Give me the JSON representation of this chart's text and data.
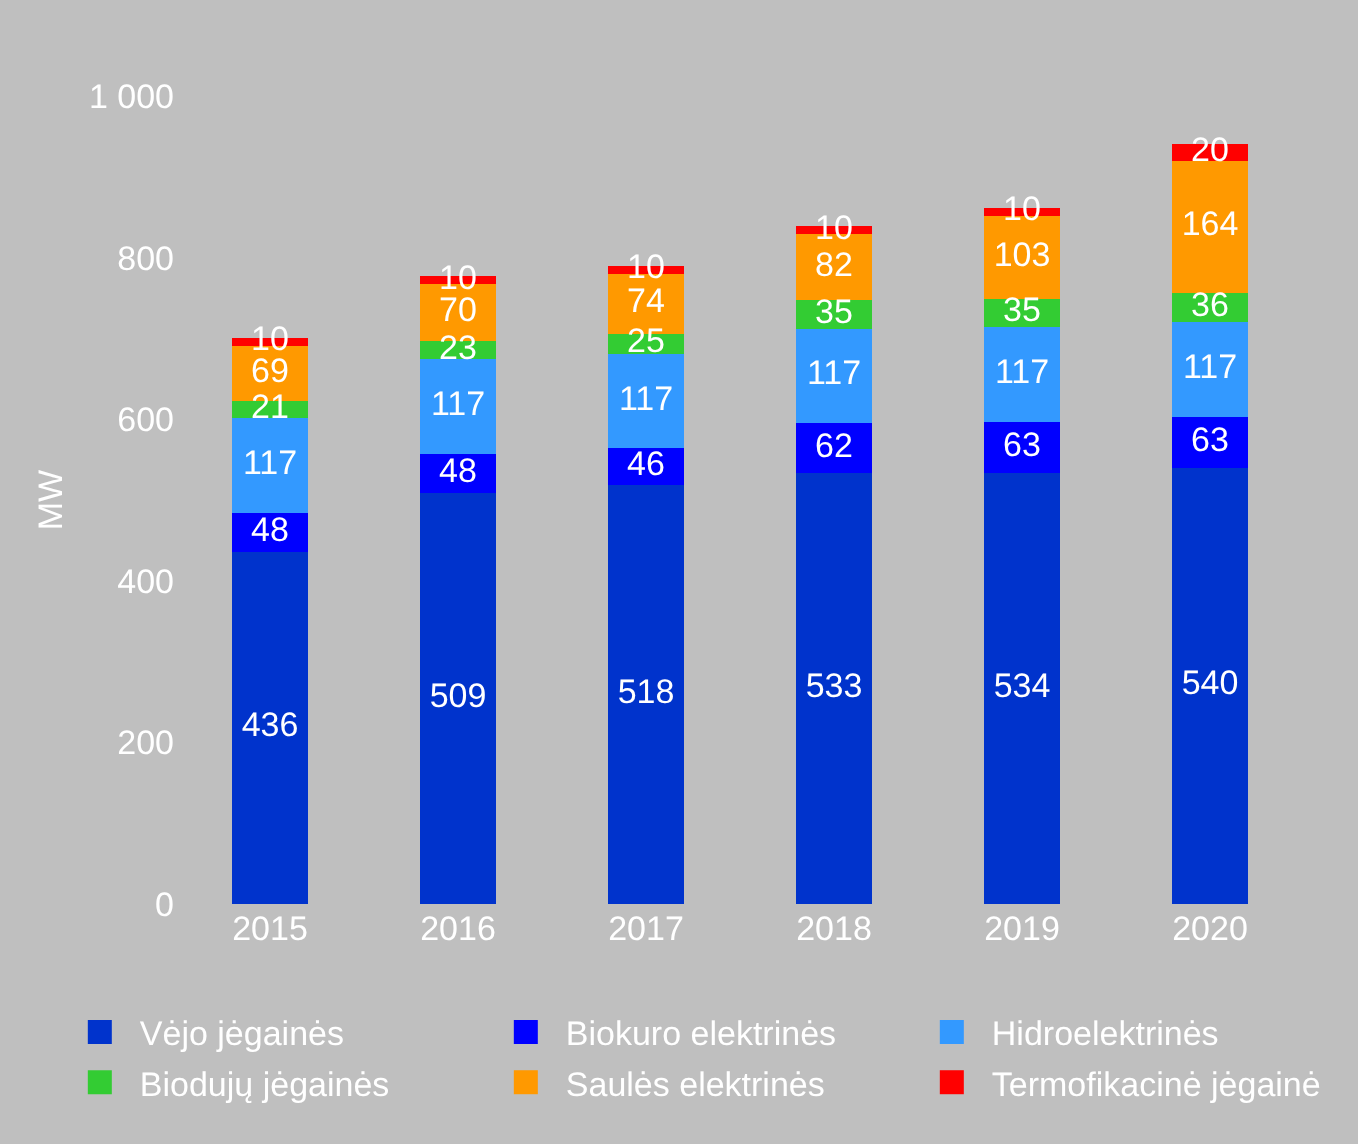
{
  "chart_data": {
    "type": "bar",
    "stacked": true,
    "ylabel": "MW",
    "categories": [
      "2015",
      "2016",
      "2017",
      "2018",
      "2019",
      "2020"
    ],
    "series": [
      {
        "name": "Vėjo jėgainės",
        "color": "#0033cc",
        "values": [
          436,
          509,
          518,
          533,
          534,
          540
        ]
      },
      {
        "name": "Biokuro elektrinės",
        "color": "#0000ff",
        "values": [
          48,
          48,
          46,
          62,
          63,
          63
        ]
      },
      {
        "name": "Hidroelektrinės",
        "color": "#3399ff",
        "values": [
          117,
          117,
          117,
          117,
          117,
          117
        ]
      },
      {
        "name": "Biodujų jėgainės",
        "color": "#33cc33",
        "values": [
          21,
          23,
          25,
          35,
          35,
          36
        ]
      },
      {
        "name": "Saulės elektrinės",
        "color": "#ff9900",
        "values": [
          69,
          70,
          74,
          82,
          103,
          164
        ]
      },
      {
        "name": "Termofikacinė jėgainė",
        "color": "#ff0000",
        "values": [
          10,
          10,
          10,
          10,
          10,
          20
        ]
      }
    ],
    "ylim": [
      0,
      1000
    ],
    "yticks": [
      0,
      200,
      400,
      600,
      800,
      {
        "value": 1000,
        "label": "1 000"
      }
    ],
    "data_labels": true,
    "legend": "bottom"
  }
}
